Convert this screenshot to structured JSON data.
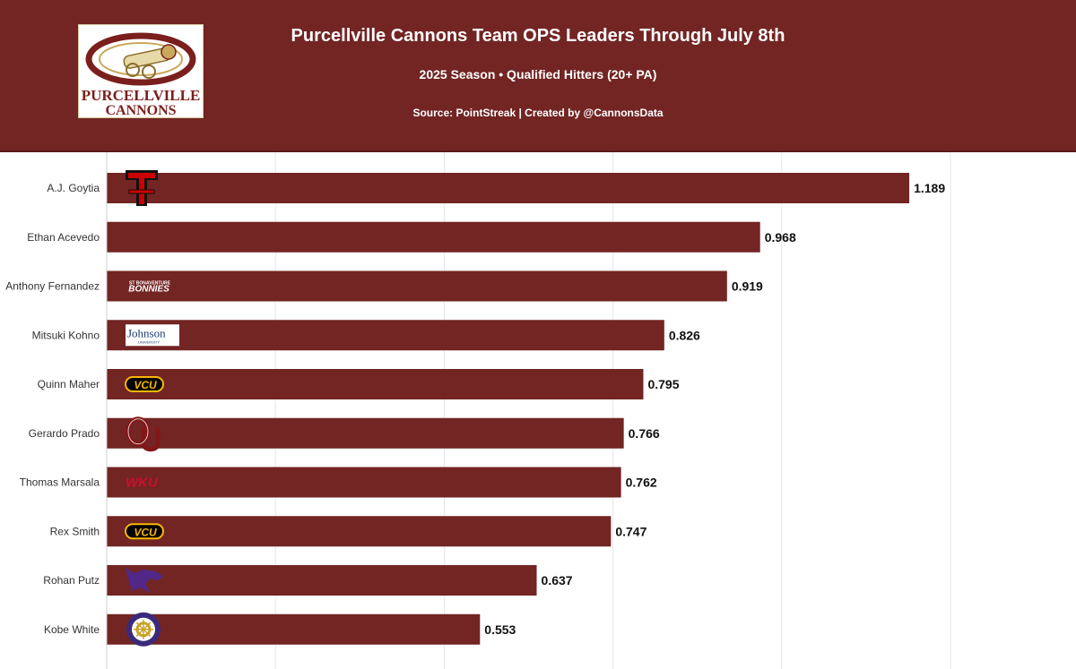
{
  "header": {
    "title": "Purcellville Cannons Team OPS Leaders Through July 8th",
    "subtitle": "2025 Season • Qualified Hitters (20+ PA)",
    "source": "Source: PointStreak | Created by @CannonsData",
    "logo_text_line1": "PURCELLVILLE",
    "logo_text_line2": "CANNONS"
  },
  "colors": {
    "header_bg": "#722523",
    "bar": "#722523",
    "grid": "#e6e6e6"
  },
  "chart_data": {
    "type": "bar",
    "orientation": "horizontal",
    "title": "Purcellville Cannons Team OPS Leaders Through July 8th",
    "subtitle": "2025 Season • Qualified Hitters (20+ PA)",
    "xlim": [
      0,
      1.25
    ],
    "grid": true,
    "categories": [
      "A.J. Goytia",
      "Ethan Acevedo",
      "Anthony Fernandez",
      "Mitsuki Kohno",
      "Quinn Maher",
      "Gerardo Prado",
      "Thomas Marsala",
      "Rex Smith",
      "Rohan Putz",
      "Kobe White"
    ],
    "values": [
      1.189,
      0.968,
      0.919,
      0.826,
      0.795,
      0.766,
      0.762,
      0.747,
      0.637,
      0.553
    ],
    "value_labels": [
      "1.189",
      "0.968",
      "0.919",
      "0.826",
      "0.795",
      "0.766",
      "0.762",
      "0.747",
      "0.637",
      "0.553"
    ],
    "school_logos": [
      "texas-tech-logo",
      "",
      "st-bonaventure-logo",
      "johnson-university-logo",
      "vcu-logo",
      "oklahoma-logo",
      "wku-logo",
      "vcu-logo",
      "kansas-state-logo",
      "lsu-shreveport-logo"
    ],
    "logo_texts": {
      "st-bonaventure-logo": "BONNIES",
      "st-bonaventure-logo-small": "ST BONAVENTURE",
      "johnson-university-logo": "Johnson",
      "johnson-university-logo-small": "UNIVERSITY",
      "vcu-logo": "VCU",
      "wku-logo": "WKU"
    }
  }
}
